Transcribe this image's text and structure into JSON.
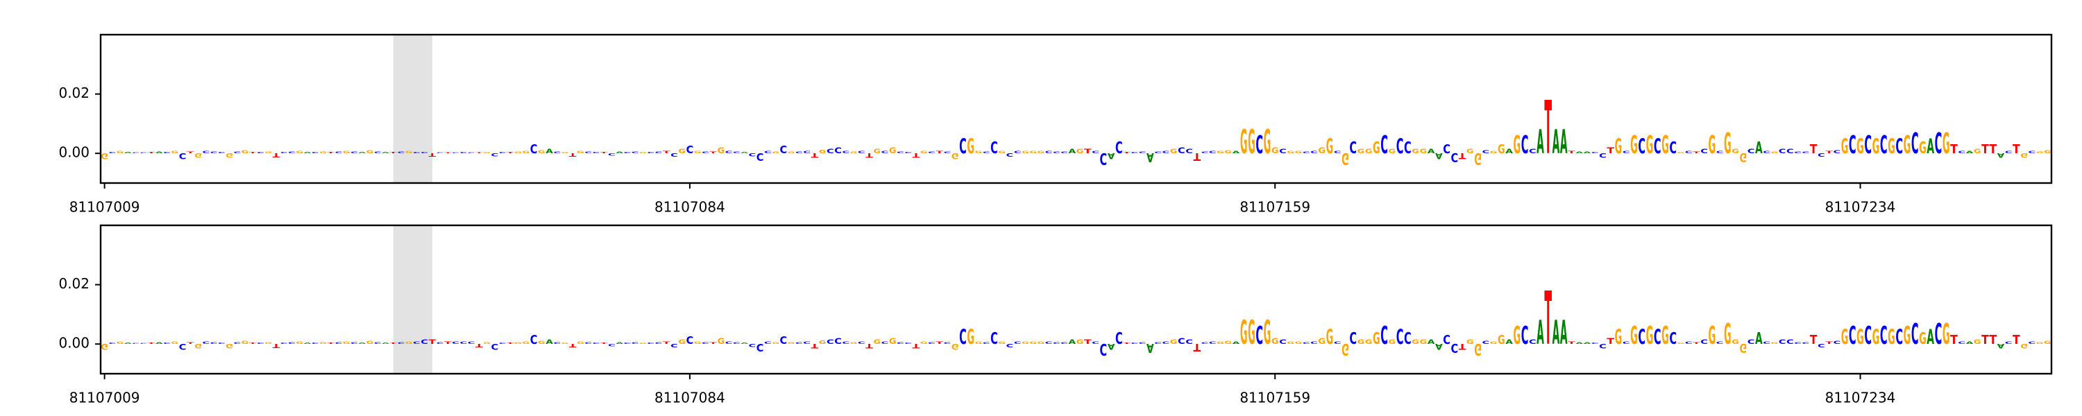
{
  "chart_data": [
    {
      "type": "logo",
      "bases": "GCGACCTACGCTGCCCGCGTCGTCCGACGTCGCAGCATCGCCTCTCCCTGCCTGGCGACGTGCCTCACCGCCTCGCGCTGCCACCCGCGCCTGCCCGCTGCGCCTGCTCGCGGCCGCCGGGCCCAGTCCACTCCACCGCCTCCGGAGGCGGCGGCCGGCGCGGGCGCCGGAACCTGGCGGAGCCATAATAACCTGCGCGCGCGCTCGCGGGCACGCCCCTCTCGCGCGCGCGCGACGTCAGTTACTGCGG",
      "colors": {
        "A": "#008000",
        "C": "#0000ff",
        "G": "#ffa500",
        "T": "#ff0000"
      },
      "x": [
        81107009,
        81107010,
        81107011,
        81107012,
        81107013,
        81107014,
        81107015,
        81107016,
        81107017,
        81107018,
        81107019,
        81107020,
        81107021,
        81107022,
        81107023,
        81107024,
        81107025,
        81107026,
        81107027,
        81107028,
        81107029,
        81107030,
        81107031,
        81107032,
        81107033,
        81107034,
        81107035,
        81107036,
        81107037,
        81107038,
        81107039,
        81107040,
        81107041,
        81107042,
        81107043,
        81107044,
        81107045,
        81107046,
        81107047,
        81107048,
        81107049,
        81107050,
        81107051,
        81107052,
        81107053,
        81107054,
        81107055,
        81107056,
        81107057,
        81107058,
        81107059,
        81107060,
        81107061,
        81107062,
        81107063,
        81107064,
        81107065,
        81107066,
        81107067,
        81107068,
        81107069,
        81107070,
        81107071,
        81107072,
        81107073,
        81107074,
        81107075,
        81107076,
        81107077,
        81107078,
        81107079,
        81107080,
        81107081,
        81107082,
        81107083,
        81107084,
        81107085,
        81107086,
        81107087,
        81107088,
        81107089,
        81107090,
        81107091,
        81107092,
        81107093,
        81107094,
        81107095,
        81107096,
        81107097,
        81107098,
        81107099,
        81107100,
        81107101,
        81107102,
        81107103,
        81107104,
        81107105,
        81107106,
        81107107,
        81107108,
        81107109,
        81107110,
        81107111,
        81107112,
        81107113,
        81107114,
        81107115,
        81107116,
        81107117,
        81107118,
        81107119,
        81107120,
        81107121,
        81107122,
        81107123,
        81107124,
        81107125,
        81107126,
        81107127,
        81107128,
        81107129,
        81107130,
        81107131,
        81107132,
        81107133,
        81107134,
        81107135,
        81107136,
        81107137,
        81107138,
        81107139,
        81107140,
        81107141,
        81107142,
        81107143,
        81107144,
        81107145,
        81107146,
        81107147,
        81107148,
        81107149,
        81107150,
        81107151,
        81107152,
        81107153,
        81107154,
        81107155,
        81107156,
        81107157,
        81107158,
        81107159,
        81107160,
        81107161,
        81107162,
        81107163,
        81107164,
        81107165,
        81107166,
        81107167,
        81107168,
        81107169,
        81107170,
        81107171,
        81107172,
        81107173,
        81107174,
        81107175,
        81107176,
        81107177,
        81107178,
        81107179,
        81107180,
        81107181,
        81107182,
        81107183,
        81107184,
        81107185,
        81107186,
        81107187,
        81107188,
        81107189,
        81107190,
        81107191,
        81107192,
        81107193,
        81107194,
        81107195,
        81107196,
        81107197,
        81107198,
        81107199,
        81107200,
        81107201,
        81107202,
        81107203,
        81107204,
        81107205,
        81107206,
        81107207,
        81107208,
        81107209,
        81107210,
        81107211,
        81107212,
        81107213,
        81107214,
        81107215,
        81107216,
        81107217,
        81107218,
        81107219,
        81107220,
        81107221,
        81107222,
        81107223,
        81107224,
        81107225,
        81107226,
        81107227,
        81107228,
        81107229,
        81107230,
        81107231,
        81107232,
        81107233,
        81107234,
        81107235,
        81107236,
        81107237,
        81107238,
        81107239,
        81107240,
        81107241,
        81107242,
        81107243,
        81107244,
        81107245,
        81107246,
        81107247,
        81107248,
        81107249,
        81107250,
        81107251,
        81107252,
        81107253,
        81107254,
        81107255,
        81107256,
        81107257,
        81107258
      ],
      "values": [
        -0.002,
        0.0005,
        0.0008,
        0.0005,
        0.0003,
        0.0003,
        0.0004,
        0.0006,
        0.0005,
        0.0008,
        -0.002,
        0.0006,
        -0.0015,
        0.0008,
        0.0006,
        0.0005,
        -0.0015,
        0.0006,
        0.001,
        0.0004,
        0.0005,
        0.0006,
        -0.0014,
        0.0004,
        0.0006,
        0.0008,
        0.0005,
        0.0004,
        0.0006,
        0.0005,
        0.0006,
        0.0008,
        0.0006,
        0.0004,
        0.001,
        0.0006,
        0.0005,
        0.0005,
        0.0006,
        0.0008,
        0.0005,
        0.0004,
        -0.0012,
        0.0003,
        0.0003,
        0.0003,
        0.0004,
        0.0003,
        0.0003,
        0.0004,
        -0.001,
        0.0005,
        0.0005,
        0.0006,
        0.0008,
        0.003,
        0.001,
        0.0015,
        0.0006,
        0.0005,
        -0.0012,
        0.0008,
        0.0006,
        0.0004,
        0.0005,
        -0.0008,
        0.0006,
        0.0005,
        0.0006,
        0.0005,
        0.0004,
        0.0006,
        0.0008,
        -0.0012,
        0.0015,
        0.0025,
        0.0008,
        0.0006,
        0.0006,
        0.002,
        0.0008,
        0.0006,
        0.0005,
        -0.001,
        -0.0025,
        0.0008,
        0.0006,
        0.0025,
        0.0006,
        0.0006,
        0.0008,
        -0.0015,
        0.0012,
        0.0015,
        0.002,
        0.0008,
        0.0006,
        0.0007,
        -0.0015,
        0.0015,
        0.0008,
        0.002,
        0.0006,
        0.0005,
        -0.0015,
        0.0008,
        0.0006,
        0.0008,
        0.0006,
        -0.002,
        0.005,
        0.005,
        0.0008,
        0.0006,
        0.004,
        0.0008,
        -0.0012,
        0.0008,
        0.0008,
        0.0008,
        0.0008,
        0.0008,
        0.0006,
        0.0006,
        0.0015,
        0.0015,
        0.0015,
        0.0008,
        -0.004,
        -0.002,
        0.004,
        0.0004,
        0.0004,
        0.0006,
        -0.003,
        0.0006,
        0.0008,
        0.0015,
        0.002,
        0.0015,
        -0.0025,
        0.0006,
        0.0008,
        0.0008,
        0.001,
        0.0008,
        0.008,
        0.008,
        0.006,
        0.008,
        0.002,
        0.0015,
        0.0008,
        0.0008,
        0.0006,
        0.0008,
        0.002,
        0.005,
        0.0008,
        -0.004,
        0.004,
        0.0015,
        0.0015,
        0.004,
        0.006,
        0.0015,
        0.005,
        0.004,
        0.0015,
        0.0015,
        0.0015,
        -0.002,
        0.003,
        -0.003,
        -0.002,
        0.0015,
        -0.004,
        0.001,
        0.0008,
        0.003,
        0.0015,
        0.006,
        0.006,
        0.0015,
        0.008,
        0.018,
        0.008,
        0.008,
        0.0008,
        0.0006,
        0.0006,
        0.0005,
        -0.0015,
        0.002,
        0.005,
        0.0008,
        0.006,
        0.005,
        0.006,
        0.005,
        0.006,
        0.004,
        0.0005,
        0.0008,
        0.0006,
        0.0015,
        0.006,
        0.0008,
        0.007,
        0.0015,
        -0.003,
        0.0015,
        0.004,
        0.0008,
        0.0006,
        0.0015,
        0.0015,
        0.0006,
        0.0006,
        0.003,
        -0.0012,
        0.0008,
        0.001,
        0.005,
        0.006,
        0.005,
        0.006,
        0.005,
        0.006,
        0.005,
        0.005,
        0.006,
        0.007,
        0.004,
        0.005,
        0.007,
        0.007,
        0.003,
        0.0008,
        0.0008,
        0.0015,
        0.003,
        0.003,
        -0.0015,
        0.0008,
        0.003,
        -0.0015,
        0.0008,
        0.0006,
        0.001
      ],
      "highlight": [
        81107046,
        81107051
      ],
      "xlim": [
        81107008.5,
        81107258.5
      ],
      "xticks": [
        81107009,
        81107084,
        81107159,
        81107234
      ],
      "ylim": [
        -0.01,
        0.04
      ],
      "yticks": [
        {
          "value": 0,
          "label": "0.00"
        },
        {
          "value": 0.02,
          "label": "0.02"
        }
      ]
    },
    {
      "type": "logo",
      "bases": "GCGACCTACGCTGCCCGCGTCGTCCGACGTCGCAGCATCGCCTCTCCCTGCCTGGCGACGTGCCTCACCGCCTCGCGCTGCCACCCGCGCCTGCCCGCTGCGCCTGCTCGCGGCCGCCGGGCCCAGTCCACTCCACCGCCTCCGGAGGCGGCGGCCGGCGCGGGCGCCGGAACCTGGCGGAGCCATAATAACCTGCGCGCGCGCTCGCGGGCACGCCCCTCTCGCGCGCGCGCGACGTCAGTTACTGCGG",
      "colors": {
        "A": "#008000",
        "C": "#0000ff",
        "G": "#ffa500",
        "T": "#ff0000"
      },
      "x": [
        81107009,
        81107010,
        81107011,
        81107012,
        81107013,
        81107014,
        81107015,
        81107016,
        81107017,
        81107018,
        81107019,
        81107020,
        81107021,
        81107022,
        81107023,
        81107024,
        81107025,
        81107026,
        81107027,
        81107028,
        81107029,
        81107030,
        81107031,
        81107032,
        81107033,
        81107034,
        81107035,
        81107036,
        81107037,
        81107038,
        81107039,
        81107040,
        81107041,
        81107042,
        81107043,
        81107044,
        81107045,
        81107046,
        81107047,
        81107048,
        81107049,
        81107050,
        81107051,
        81107052,
        81107053,
        81107054,
        81107055,
        81107056,
        81107057,
        81107058,
        81107059,
        81107060,
        81107061,
        81107062,
        81107063,
        81107064,
        81107065,
        81107066,
        81107067,
        81107068,
        81107069,
        81107070,
        81107071,
        81107072,
        81107073,
        81107074,
        81107075,
        81107076,
        81107077,
        81107078,
        81107079,
        81107080,
        81107081,
        81107082,
        81107083,
        81107084,
        81107085,
        81107086,
        81107087,
        81107088,
        81107089,
        81107090,
        81107091,
        81107092,
        81107093,
        81107094,
        81107095,
        81107096,
        81107097,
        81107098,
        81107099,
        81107100,
        81107101,
        81107102,
        81107103,
        81107104,
        81107105,
        81107106,
        81107107,
        81107108,
        81107109,
        81107110,
        81107111,
        81107112,
        81107113,
        81107114,
        81107115,
        81107116,
        81107117,
        81107118,
        81107119,
        81107120,
        81107121,
        81107122,
        81107123,
        81107124,
        81107125,
        81107126,
        81107127,
        81107128,
        81107129,
        81107130,
        81107131,
        81107132,
        81107133,
        81107134,
        81107135,
        81107136,
        81107137,
        81107138,
        81107139,
        81107140,
        81107141,
        81107142,
        81107143,
        81107144,
        81107145,
        81107146,
        81107147,
        81107148,
        81107149,
        81107150,
        81107151,
        81107152,
        81107153,
        81107154,
        81107155,
        81107156,
        81107157,
        81107158,
        81107159,
        81107160,
        81107161,
        81107162,
        81107163,
        81107164,
        81107165,
        81107166,
        81107167,
        81107168,
        81107169,
        81107170,
        81107171,
        81107172,
        81107173,
        81107174,
        81107175,
        81107176,
        81107177,
        81107178,
        81107179,
        81107180,
        81107181,
        81107182,
        81107183,
        81107184,
        81107185,
        81107186,
        81107187,
        81107188,
        81107189,
        81107190,
        81107191,
        81107192,
        81107193,
        81107194,
        81107195,
        81107196,
        81107197,
        81107198,
        81107199,
        81107200,
        81107201,
        81107202,
        81107203,
        81107204,
        81107205,
        81107206,
        81107207,
        81107208,
        81107209,
        81107210,
        81107211,
        81107212,
        81107213,
        81107214,
        81107215,
        81107216,
        81107217,
        81107218,
        81107219,
        81107220,
        81107221,
        81107222,
        81107223,
        81107224,
        81107225,
        81107226,
        81107227,
        81107228,
        81107229,
        81107230,
        81107231,
        81107232,
        81107233,
        81107234,
        81107235,
        81107236,
        81107237,
        81107238,
        81107239,
        81107240,
        81107241,
        81107242,
        81107243,
        81107244,
        81107245,
        81107246,
        81107247,
        81107248,
        81107249,
        81107250,
        81107251,
        81107252,
        81107253,
        81107254,
        81107255,
        81107256,
        81107257,
        81107258
      ],
      "values": [
        -0.002,
        0.0005,
        0.0008,
        0.0005,
        0.0003,
        0.0003,
        0.0004,
        0.0006,
        0.0005,
        0.0008,
        -0.002,
        0.0006,
        -0.0015,
        0.0008,
        0.0006,
        0.0005,
        -0.0015,
        0.0006,
        0.001,
        0.0004,
        0.0005,
        0.0006,
        -0.0014,
        0.0004,
        0.0006,
        0.0008,
        0.0005,
        0.0004,
        0.0006,
        0.0005,
        0.0006,
        0.0008,
        0.0006,
        0.0004,
        0.001,
        0.0006,
        0.0005,
        0.0005,
        0.0006,
        0.0008,
        0.0008,
        0.0015,
        0.0015,
        0.0006,
        0.0008,
        0.0008,
        0.0008,
        0.0008,
        -0.0012,
        0.0006,
        -0.002,
        0.0005,
        0.0005,
        0.0006,
        0.0008,
        0.003,
        0.001,
        0.0015,
        0.0006,
        0.0005,
        -0.0012,
        0.0008,
        0.0006,
        0.0004,
        0.0005,
        -0.0008,
        0.0006,
        0.0005,
        0.0006,
        0.0005,
        0.0004,
        0.0006,
        0.0008,
        -0.0012,
        0.0015,
        0.0025,
        0.0008,
        0.0006,
        0.0006,
        0.002,
        0.0008,
        0.0006,
        0.0005,
        -0.001,
        -0.0025,
        0.0008,
        0.0006,
        0.0025,
        0.0006,
        0.0006,
        0.0008,
        -0.0015,
        0.0012,
        0.0015,
        0.002,
        0.0008,
        0.0006,
        0.0007,
        -0.0015,
        0.0015,
        0.0008,
        0.002,
        0.0006,
        0.0005,
        -0.0015,
        0.0008,
        0.0006,
        0.0008,
        0.0006,
        -0.002,
        0.005,
        0.005,
        0.0008,
        0.0006,
        0.004,
        0.0008,
        -0.0012,
        0.0008,
        0.0008,
        0.0008,
        0.0008,
        0.0008,
        0.0006,
        0.0006,
        0.0015,
        0.0015,
        0.0015,
        0.0008,
        -0.004,
        -0.002,
        0.004,
        0.0004,
        0.0004,
        0.0006,
        -0.003,
        0.0006,
        0.0008,
        0.0015,
        0.002,
        0.0015,
        -0.0025,
        0.0006,
        0.0008,
        0.0008,
        0.001,
        0.0008,
        0.008,
        0.008,
        0.006,
        0.008,
        0.002,
        0.0015,
        0.0008,
        0.0008,
        0.0006,
        0.0008,
        0.002,
        0.005,
        0.0008,
        -0.004,
        0.004,
        0.0015,
        0.0015,
        0.004,
        0.006,
        0.0015,
        0.005,
        0.004,
        0.0015,
        0.0015,
        0.0015,
        -0.002,
        0.003,
        -0.003,
        -0.002,
        0.0015,
        -0.004,
        0.001,
        0.0008,
        0.003,
        0.0015,
        0.006,
        0.006,
        0.0015,
        0.008,
        0.018,
        0.008,
        0.008,
        0.0008,
        0.0006,
        0.0006,
        0.0005,
        -0.0015,
        0.002,
        0.005,
        0.0008,
        0.006,
        0.005,
        0.006,
        0.005,
        0.006,
        0.004,
        0.0005,
        0.0008,
        0.0006,
        0.0015,
        0.006,
        0.0008,
        0.007,
        0.0015,
        -0.003,
        0.0015,
        0.004,
        0.0008,
        0.0006,
        0.0015,
        0.0015,
        0.0006,
        0.0006,
        0.003,
        -0.0012,
        0.0008,
        0.001,
        0.005,
        0.006,
        0.005,
        0.006,
        0.005,
        0.006,
        0.005,
        0.005,
        0.006,
        0.007,
        0.004,
        0.005,
        0.007,
        0.007,
        0.003,
        0.0008,
        0.0008,
        0.0015,
        0.003,
        0.003,
        -0.0015,
        0.0008,
        0.003,
        -0.0015,
        0.0008,
        0.0006,
        0.001
      ],
      "highlight": [
        81107046,
        81107051
      ],
      "xlim": [
        81107008.5,
        81107258.5
      ],
      "xticks": [
        81107009,
        81107084,
        81107159,
        81107234
      ],
      "ylim": [
        -0.01,
        0.04
      ],
      "yticks": [
        {
          "value": 0,
          "label": "0.00"
        },
        {
          "value": 0.02,
          "label": "0.02"
        }
      ]
    }
  ]
}
